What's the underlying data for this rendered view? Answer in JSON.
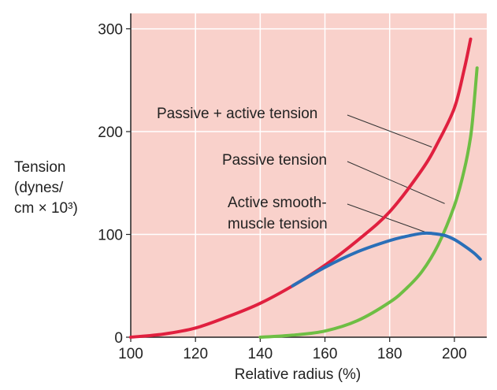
{
  "chart_data": {
    "type": "line",
    "xlabel": "Relative radius (%)",
    "ylabel_lines": [
      "Tension",
      "(dynes/",
      "cm × 10³)"
    ],
    "xlim": [
      100,
      210
    ],
    "ylim": [
      0,
      315
    ],
    "xticks": [
      100,
      120,
      140,
      160,
      180,
      200
    ],
    "yticks": [
      0,
      100,
      200,
      300
    ],
    "grid": true,
    "background_color": "#f9d1cb",
    "grid_color": "#ffffff",
    "series": [
      {
        "name": "Passive + active tension",
        "color": "#e0203f",
        "x": [
          100,
          110,
          120,
          130,
          140,
          150,
          160,
          170,
          180,
          190,
          195,
          200,
          203,
          205
        ],
        "y": [
          0,
          3,
          9,
          20,
          33,
          50,
          70,
          94,
          122,
          163,
          190,
          223,
          260,
          290
        ]
      },
      {
        "name": "Passive tension",
        "color": "#6ebe44",
        "x": [
          140,
          150,
          160,
          170,
          180,
          185,
          190,
          195,
          200,
          203,
          205,
          206,
          207
        ],
        "y": [
          0,
          2,
          6,
          16,
          34,
          47,
          64,
          90,
          128,
          162,
          195,
          225,
          262
        ]
      },
      {
        "name": "Active smooth-muscle tension",
        "color": "#2a6fb8",
        "x": [
          150,
          160,
          170,
          180,
          185,
          190,
          193,
          197,
          200,
          203,
          206,
          208
        ],
        "y": [
          50,
          68,
          83,
          94,
          98,
          101,
          101,
          99,
          95,
          89,
          82,
          76
        ]
      }
    ],
    "annotations": [
      {
        "text_lines": [
          "Passive + active tension"
        ],
        "series": 0,
        "point": [
          193,
          185
        ]
      },
      {
        "text_lines": [
          "Passive tension"
        ],
        "series": 1,
        "point": [
          197,
          130
        ]
      },
      {
        "text_lines": [
          "Active smooth-",
          "muscle tension"
        ],
        "series": 2,
        "point": [
          193,
          100
        ]
      }
    ]
  }
}
